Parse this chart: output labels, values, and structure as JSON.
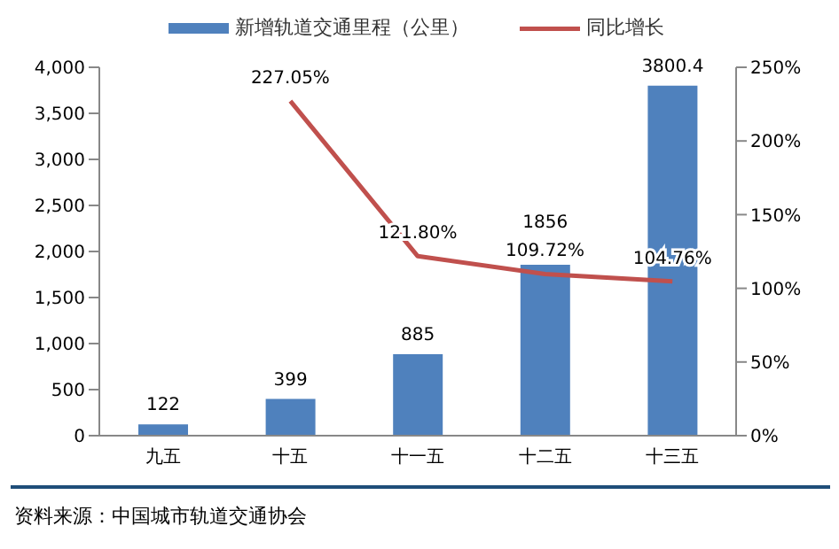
{
  "chart_data": {
    "type": "bar",
    "categories": [
      "九五",
      "十五",
      "十一五",
      "十二五",
      "十三五"
    ],
    "series": [
      {
        "name": "新增轨道交通里程（公里）",
        "color": "#4f81bd",
        "values": [
          122,
          399,
          885,
          1856,
          3800.4
        ],
        "value_labels": [
          "122",
          "399",
          "885",
          "1856",
          "3800.4"
        ]
      },
      {
        "name": "同比增长",
        "type": "line",
        "axis": "y2",
        "color": "#c0504d",
        "values": [
          null,
          227.05,
          121.8,
          109.72,
          104.76
        ],
        "value_labels": [
          null,
          "227.05%",
          "121.80%",
          "109.72%",
          "104.76%"
        ]
      }
    ],
    "ylim": [
      0,
      4000
    ],
    "yticks": [
      0,
      {
        "value": 500,
        "label": "500"
      },
      {
        "value": 1000,
        "label": "1,000"
      },
      {
        "value": 1500,
        "label": "1,500"
      },
      {
        "value": 2000,
        "label": "2,000"
      },
      {
        "value": 2500,
        "label": "2,500"
      },
      {
        "value": 3000,
        "label": "3,000"
      },
      {
        "value": 3500,
        "label": "3,500"
      },
      {
        "value": 4000,
        "label": "4,000"
      }
    ],
    "y2lim": [
      0,
      250
    ],
    "y2ticks": [
      {
        "value": 0,
        "label": "0%"
      },
      {
        "value": 50,
        "label": "50%"
      },
      {
        "value": 100,
        "label": "100%"
      },
      {
        "value": 150,
        "label": "150%"
      },
      {
        "value": 200,
        "label": "200%"
      },
      {
        "value": 250,
        "label": "250%"
      }
    ],
    "grid": false,
    "legend": "top",
    "marker": "none",
    "annotations": [
      "资料来源：中国城市轨道交通协会"
    ]
  }
}
